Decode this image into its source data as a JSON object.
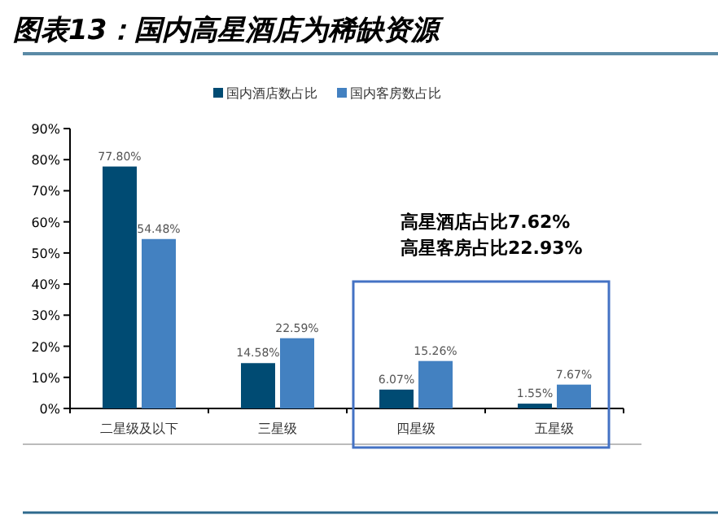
{
  "chart_data": {
    "type": "bar",
    "title": "图表13：国内高星酒店为稀缺资源",
    "categories": [
      "二星级及以下",
      "三星级",
      "四星级",
      "五星级"
    ],
    "series": [
      {
        "name": "国内酒店数占比",
        "color": "#004b73",
        "values": [
          77.8,
          14.58,
          6.07,
          1.55
        ],
        "value_labels": [
          "77.80%",
          "14.58%",
          "6.07%",
          "1.55%"
        ]
      },
      {
        "name": "国内客房数占比",
        "color": "#4381c1",
        "values": [
          54.48,
          22.59,
          15.26,
          7.67
        ],
        "value_labels": [
          "54.48%",
          "22.59%",
          "15.26%",
          "7.67%"
        ]
      }
    ],
    "ylim": [
      0,
      90
    ],
    "yticks": [
      {
        "value": 0,
        "label": "0%"
      },
      {
        "value": 10,
        "label": "10%"
      },
      {
        "value": 20,
        "label": "20%"
      },
      {
        "value": 30,
        "label": "30%"
      },
      {
        "value": 40,
        "label": "40%"
      },
      {
        "value": 50,
        "label": "50%"
      },
      {
        "value": 60,
        "label": "60%"
      },
      {
        "value": 70,
        "label": "70%"
      },
      {
        "value": 80,
        "label": "80%"
      },
      {
        "value": 90,
        "label": "90%"
      }
    ],
    "legend": "top",
    "grid": false,
    "annotations": [
      "高星酒店占比7.62%",
      "高星客房占比22.93%"
    ]
  }
}
